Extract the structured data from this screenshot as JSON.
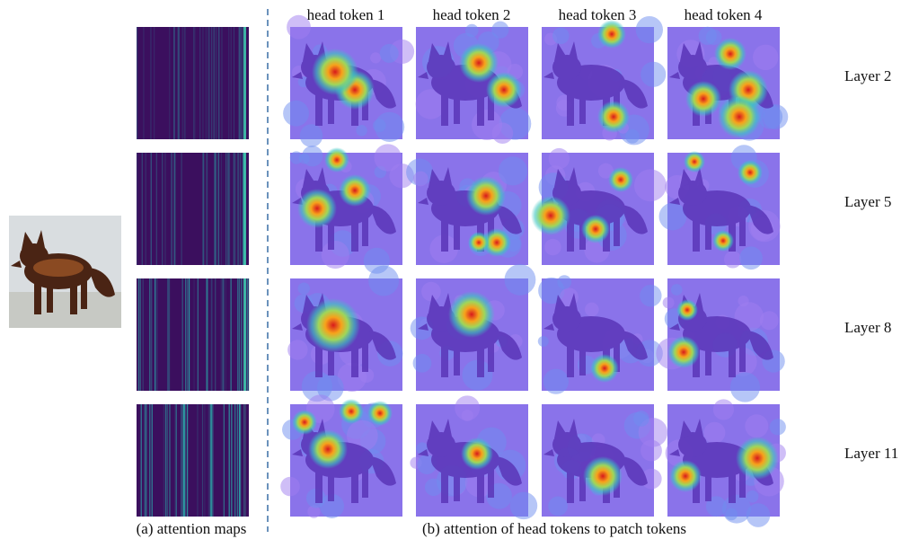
{
  "columns": [
    "head token 1",
    "head token 2",
    "head token 3",
    "head token 4"
  ],
  "rows": [
    "Layer 2",
    "Layer 5",
    "Layer 8",
    "Layer 11"
  ],
  "captions": {
    "left": "(a) attention maps",
    "right": "(b) attention of head tokens to patch tokens"
  }
}
